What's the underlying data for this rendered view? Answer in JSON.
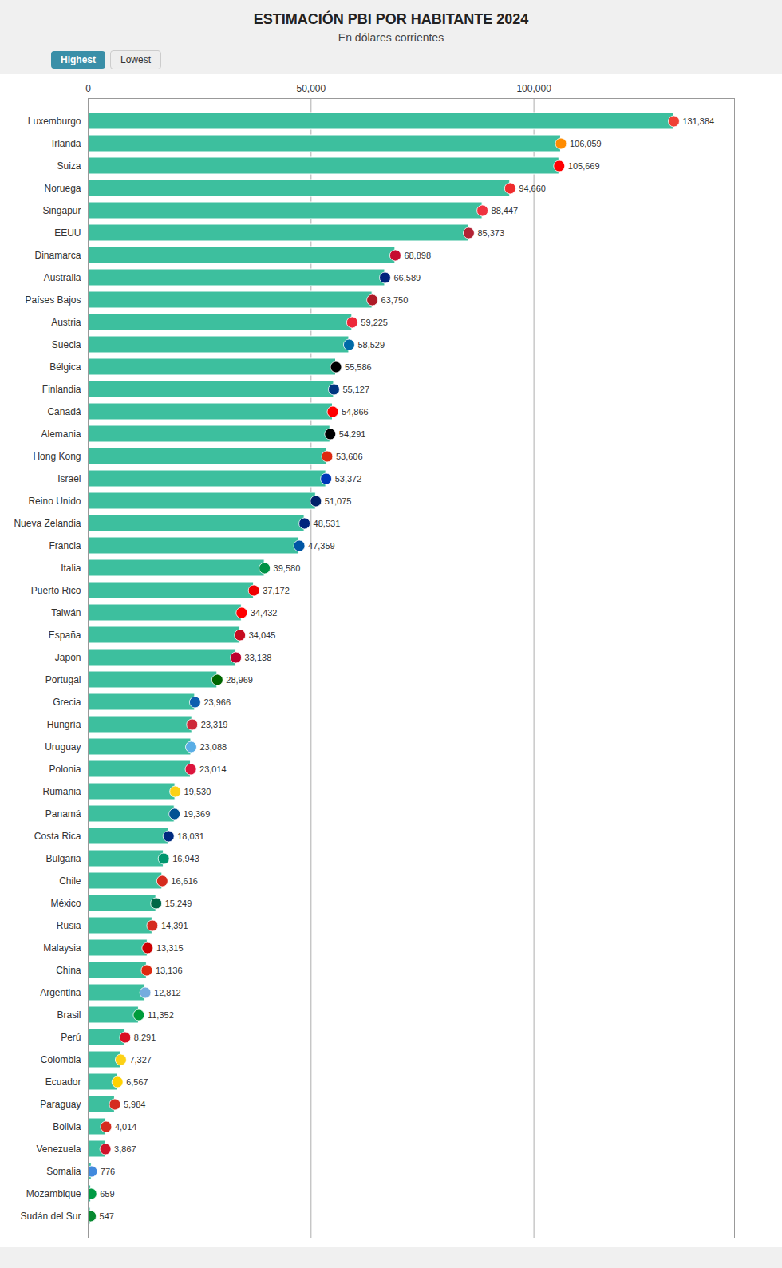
{
  "chart_data": {
    "type": "bar",
    "orientation": "horizontal",
    "title": "ESTIMACIÓN PBI POR HABITANTE 2024",
    "subtitle": "En dólares corrientes",
    "annotations": [
      "Highest",
      "Lowest"
    ],
    "categories": [
      "Luxemburgo",
      "Irlanda",
      "Suiza",
      "Noruega",
      "Singapur",
      "EEUU",
      "Dinamarca",
      "Australia",
      "Países Bajos",
      "Austria",
      "Suecia",
      "Bélgica",
      "Finlandia",
      "Canadá",
      "Alemania",
      "Hong Kong",
      "Israel",
      "Reino Unido",
      "Nueva Zelandia",
      "Francia",
      "Italia",
      "Puerto Rico",
      "Taiwán",
      "España",
      "Japón",
      "Portugal",
      "Grecia",
      "Hungría",
      "Uruguay",
      "Polonia",
      "Rumania",
      "Panamá",
      "Costa Rica",
      "Bulgaria",
      "Chile",
      "México",
      "Rusia",
      "Malaysia",
      "China",
      "Argentina",
      "Brasil",
      "Perú",
      "Colombia",
      "Ecuador",
      "Paraguay",
      "Bolivia",
      "Venezuela",
      "Somalia",
      "Mozambique",
      "Sudán del Sur"
    ],
    "values": [
      131384,
      106059,
      105669,
      94660,
      88447,
      85373,
      68898,
      66589,
      63750,
      59225,
      58529,
      55586,
      55127,
      54866,
      54291,
      53606,
      53372,
      51075,
      48531,
      47359,
      39580,
      37172,
      34432,
      34045,
      33138,
      28969,
      23966,
      23319,
      23088,
      23014,
      19530,
      19369,
      18031,
      16943,
      16616,
      15249,
      14391,
      13315,
      13136,
      12812,
      11352,
      8291,
      7327,
      6567,
      5984,
      4014,
      3867,
      776,
      659,
      547
    ],
    "value_labels": [
      "131,384",
      "106,059",
      "105,669",
      "94,660",
      "88,447",
      "85,373",
      "68,898",
      "66,589",
      "63,750",
      "59,225",
      "58,529",
      "55,586",
      "55,127",
      "54,866",
      "54,291",
      "53,606",
      "53,372",
      "51,075",
      "48,531",
      "47,359",
      "39,580",
      "37,172",
      "34,432",
      "34,045",
      "33,138",
      "28,969",
      "23,966",
      "23,319",
      "23,088",
      "23,014",
      "19,530",
      "19,369",
      "18,031",
      "16,943",
      "16,616",
      "15,249",
      "14,391",
      "13,315",
      "13,136",
      "12,812",
      "11,352",
      "8,291",
      "7,327",
      "6,567",
      "5,984",
      "4,014",
      "3,867",
      "776",
      "659",
      "547"
    ],
    "data_labels": true,
    "color": "#3dbf9e",
    "marker": "circle",
    "colors": [
      "#ef4135",
      "#ff8c00",
      "#ff0000",
      "#ef2b2d",
      "#ef3340",
      "#b22234",
      "#c60c30",
      "#00247d",
      "#ae1c28",
      "#ed2939",
      "#006aa7",
      "#000000",
      "#003580",
      "#ff0000",
      "#000000",
      "#de2910",
      "#0038b8",
      "#012169",
      "#00247d",
      "#0055a4",
      "#009246",
      "#ed0000",
      "#fe0000",
      "#c60b1e",
      "#bc002d",
      "#006600",
      "#0d5eaf",
      "#ce2939",
      "#5aaee5",
      "#dc143c",
      "#fcd116",
      "#005293",
      "#002b7f",
      "#00966e",
      "#d52b1e",
      "#006847",
      "#d52b1e",
      "#cc0001",
      "#de2910",
      "#74acdf",
      "#009c3b",
      "#d91023",
      "#fcd116",
      "#ffd100",
      "#d52b1e",
      "#d52b1e",
      "#cf142b",
      "#4189dd",
      "#009a44",
      "#078930"
    ],
    "xlim": [
      0,
      145000
    ],
    "xticks": [
      0,
      {
        "value": 50000,
        "label": "50,000"
      },
      {
        "value": 100000,
        "label": "100,000"
      }
    ],
    "grid": true
  }
}
